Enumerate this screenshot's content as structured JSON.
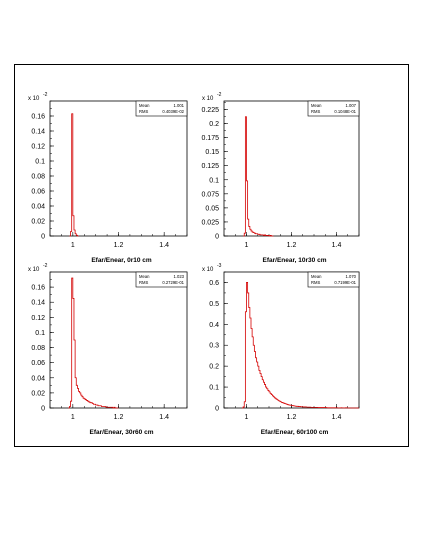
{
  "chart_data": [
    {
      "type": "histogram",
      "xlabel": "Efar/Enear, 0r10 cm",
      "multiplier": "x 10",
      "multiplier_exp": "-2",
      "xlim": [
        0.9,
        1.5
      ],
      "ylim": [
        0,
        0.18
      ],
      "yticks": [
        0,
        0.02,
        0.04,
        0.06,
        0.08,
        0.1,
        0.12,
        0.14,
        0.16
      ],
      "ytick_labels": [
        "0",
        "0.02",
        "0.04",
        "0.06",
        "0.08",
        "0.1",
        "0.12",
        "0.14",
        "0.16"
      ],
      "xticks": [
        1,
        1.2,
        1.4
      ],
      "xtick_labels": [
        "1",
        "1.2",
        "1.4"
      ],
      "stats": {
        "mean_label": "Mean",
        "mean": "1.001",
        "rms_label": "RMS",
        "rms": "0.4039E-02"
      },
      "bins": [
        [
          0.985,
          0
        ],
        [
          0.99,
          0.006
        ],
        [
          0.995,
          0.163
        ],
        [
          1.0,
          0.027
        ],
        [
          1.005,
          0.008
        ],
        [
          1.01,
          0.003
        ],
        [
          1.015,
          0.001
        ],
        [
          1.02,
          0
        ]
      ],
      "color": "#d40000"
    },
    {
      "type": "histogram",
      "xlabel": "Efar/Enear, 10r30 cm",
      "multiplier": "x 10",
      "multiplier_exp": "-2",
      "xlim": [
        0.9,
        1.5
      ],
      "ylim": [
        0,
        0.24
      ],
      "yticks": [
        0,
        0.025,
        0.05,
        0.075,
        0.1,
        0.125,
        0.15,
        0.175,
        0.2,
        0.225
      ],
      "ytick_labels": [
        "0",
        "0.025",
        "0.05",
        "0.075",
        "0.1",
        "0.125",
        "0.15",
        "0.175",
        "0.2",
        "0.225"
      ],
      "xticks": [
        1,
        1.2,
        1.4
      ],
      "xtick_labels": [
        "1",
        "1.2",
        "1.4"
      ],
      "stats": {
        "mean_label": "Mean",
        "mean": "1.007",
        "rms_label": "RMS",
        "rms": "0.1048E-01"
      },
      "bins": [
        [
          0.985,
          0
        ],
        [
          0.99,
          0.005
        ],
        [
          0.995,
          0.212
        ],
        [
          1.0,
          0.098
        ],
        [
          1.005,
          0.03
        ],
        [
          1.01,
          0.017
        ],
        [
          1.015,
          0.012
        ],
        [
          1.02,
          0.009
        ],
        [
          1.025,
          0.007
        ],
        [
          1.03,
          0.006
        ],
        [
          1.035,
          0.005
        ],
        [
          1.04,
          0.004
        ],
        [
          1.045,
          0.004
        ],
        [
          1.05,
          0.003
        ],
        [
          1.055,
          0.003
        ],
        [
          1.06,
          0.002
        ],
        [
          1.065,
          0.002
        ],
        [
          1.07,
          0.002
        ],
        [
          1.075,
          0.001
        ],
        [
          1.08,
          0.002
        ],
        [
          1.085,
          0.001
        ],
        [
          1.09,
          0.001
        ],
        [
          1.095,
          0.001
        ],
        [
          1.1,
          0
        ],
        [
          1.105,
          0.001
        ],
        [
          1.11,
          0
        ],
        [
          1.115,
          0
        ]
      ],
      "color": "#d40000"
    },
    {
      "type": "histogram",
      "xlabel": "Efar/Enear, 30r60 cm",
      "multiplier": "x 10",
      "multiplier_exp": "-2",
      "xlim": [
        0.9,
        1.5
      ],
      "ylim": [
        0,
        0.18
      ],
      "yticks": [
        0,
        0.02,
        0.04,
        0.06,
        0.08,
        0.1,
        0.12,
        0.14,
        0.16
      ],
      "ytick_labels": [
        "0",
        "0.02",
        "0.04",
        "0.06",
        "0.08",
        "0.1",
        "0.12",
        "0.14",
        "0.16"
      ],
      "xticks": [
        1,
        1.2,
        1.4
      ],
      "xtick_labels": [
        "1",
        "1.2",
        "1.4"
      ],
      "stats": {
        "mean_label": "Mean",
        "mean": "1.023",
        "rms_label": "RMS",
        "rms": "0.2729E-01"
      },
      "bins": [
        [
          0.98,
          0
        ],
        [
          0.985,
          0.002
        ],
        [
          0.99,
          0.009
        ],
        [
          0.995,
          0.172
        ],
        [
          1.0,
          0.145
        ],
        [
          1.005,
          0.09
        ],
        [
          1.01,
          0.04
        ],
        [
          1.015,
          0.03
        ],
        [
          1.02,
          0.026
        ],
        [
          1.025,
          0.022
        ],
        [
          1.03,
          0.02
        ],
        [
          1.035,
          0.017
        ],
        [
          1.04,
          0.015
        ],
        [
          1.045,
          0.013
        ],
        [
          1.05,
          0.012
        ],
        [
          1.055,
          0.011
        ],
        [
          1.06,
          0.01
        ],
        [
          1.065,
          0.009
        ],
        [
          1.07,
          0.008
        ],
        [
          1.075,
          0.007
        ],
        [
          1.08,
          0.007
        ],
        [
          1.085,
          0.006
        ],
        [
          1.09,
          0.005
        ],
        [
          1.095,
          0.005
        ],
        [
          1.1,
          0.004
        ],
        [
          1.105,
          0.004
        ],
        [
          1.11,
          0.003
        ],
        [
          1.115,
          0.003
        ],
        [
          1.12,
          0.003
        ],
        [
          1.125,
          0.002
        ],
        [
          1.13,
          0.002
        ],
        [
          1.135,
          0.002
        ],
        [
          1.14,
          0.002
        ],
        [
          1.145,
          0.001
        ],
        [
          1.15,
          0.001
        ],
        [
          1.155,
          0.001
        ],
        [
          1.16,
          0.001
        ],
        [
          1.165,
          0.001
        ],
        [
          1.17,
          0.001
        ],
        [
          1.175,
          0
        ],
        [
          1.18,
          0.001
        ],
        [
          1.185,
          0
        ],
        [
          1.19,
          0
        ],
        [
          1.195,
          0
        ]
      ],
      "color": "#d40000"
    },
    {
      "type": "histogram",
      "xlabel": "Efar/Enear, 60r100 cm",
      "multiplier": "x 10",
      "multiplier_exp": "-3",
      "xlim": [
        0.9,
        1.5
      ],
      "ylim": [
        0,
        0.65
      ],
      "yticks": [
        0,
        0.1,
        0.2,
        0.3,
        0.4,
        0.5,
        0.6
      ],
      "ytick_labels": [
        "0",
        "0.1",
        "0.2",
        "0.3",
        "0.4",
        "0.5",
        "0.6"
      ],
      "xticks": [
        1,
        1.2,
        1.4
      ],
      "xtick_labels": [
        "1",
        "1.2",
        "1.4"
      ],
      "stats": {
        "mean_label": "Mean",
        "mean": "1.070",
        "rms_label": "RMS",
        "rms": "0.7199E-01"
      },
      "bins": [
        [
          0.98,
          0
        ],
        [
          0.985,
          0.005
        ],
        [
          0.99,
          0.03
        ],
        [
          0.995,
          0.46
        ],
        [
          1.0,
          0.6
        ],
        [
          1.005,
          0.55
        ],
        [
          1.01,
          0.48
        ],
        [
          1.015,
          0.43
        ],
        [
          1.02,
          0.38
        ],
        [
          1.025,
          0.34
        ],
        [
          1.03,
          0.3
        ],
        [
          1.035,
          0.27
        ],
        [
          1.04,
          0.24
        ],
        [
          1.045,
          0.22
        ],
        [
          1.05,
          0.2
        ],
        [
          1.055,
          0.18
        ],
        [
          1.06,
          0.165
        ],
        [
          1.065,
          0.15
        ],
        [
          1.07,
          0.135
        ],
        [
          1.075,
          0.123
        ],
        [
          1.08,
          0.112
        ],
        [
          1.085,
          0.1
        ],
        [
          1.09,
          0.092
        ],
        [
          1.095,
          0.084
        ],
        [
          1.1,
          0.077
        ],
        [
          1.105,
          0.07
        ],
        [
          1.11,
          0.064
        ],
        [
          1.115,
          0.058
        ],
        [
          1.12,
          0.053
        ],
        [
          1.125,
          0.048
        ],
        [
          1.13,
          0.044
        ],
        [
          1.135,
          0.04
        ],
        [
          1.14,
          0.036
        ],
        [
          1.145,
          0.033
        ],
        [
          1.15,
          0.03
        ],
        [
          1.155,
          0.027
        ],
        [
          1.16,
          0.025
        ],
        [
          1.165,
          0.023
        ],
        [
          1.17,
          0.021
        ],
        [
          1.175,
          0.019
        ],
        [
          1.18,
          0.017
        ],
        [
          1.185,
          0.015
        ],
        [
          1.19,
          0.014
        ],
        [
          1.195,
          0.013
        ],
        [
          1.2,
          0.012
        ],
        [
          1.205,
          0.011
        ],
        [
          1.21,
          0.01
        ],
        [
          1.215,
          0.009
        ],
        [
          1.22,
          0.008
        ],
        [
          1.225,
          0.008
        ],
        [
          1.23,
          0.007
        ],
        [
          1.235,
          0.007
        ],
        [
          1.24,
          0.006
        ],
        [
          1.245,
          0.006
        ],
        [
          1.25,
          0.005
        ],
        [
          1.26,
          0.005
        ],
        [
          1.27,
          0.004
        ],
        [
          1.28,
          0.004
        ],
        [
          1.29,
          0.003
        ],
        [
          1.3,
          0.003
        ],
        [
          1.31,
          0.003
        ],
        [
          1.32,
          0.002
        ],
        [
          1.33,
          0.002
        ],
        [
          1.34,
          0.002
        ],
        [
          1.35,
          0.002
        ],
        [
          1.36,
          0.001
        ],
        [
          1.37,
          0.001
        ],
        [
          1.38,
          0.001
        ],
        [
          1.39,
          0.001
        ],
        [
          1.4,
          0.001
        ],
        [
          1.41,
          0
        ],
        [
          1.42,
          0.001
        ],
        [
          1.43,
          0
        ],
        [
          1.44,
          0.001
        ],
        [
          1.45,
          0
        ],
        [
          1.46,
          0
        ],
        [
          1.47,
          0
        ],
        [
          1.48,
          0
        ],
        [
          1.49,
          0
        ],
        [
          1.495,
          0
        ]
      ],
      "color": "#d40000"
    }
  ]
}
